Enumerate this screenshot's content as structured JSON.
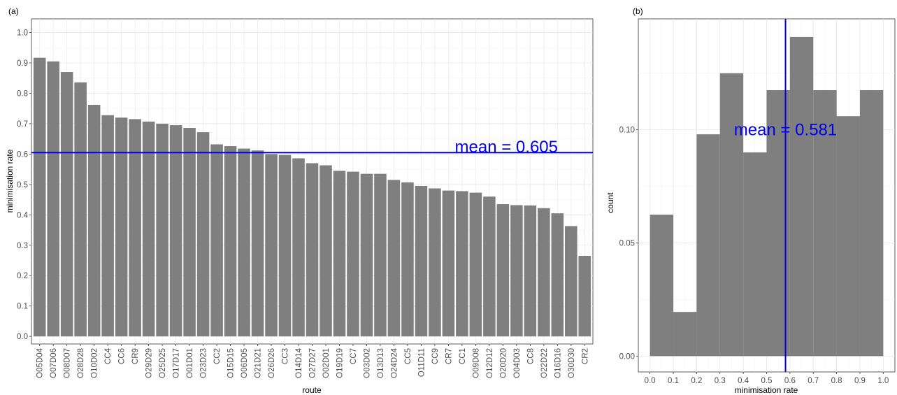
{
  "chart_data": [
    {
      "panel_label": "(a)",
      "type": "bar",
      "xlabel": "route",
      "ylabel": "minimisation rate",
      "ylim": [
        -0.025,
        1.045
      ],
      "yticks": [
        "0.0",
        "0.1",
        "0.2",
        "0.3",
        "0.4",
        "0.5",
        "0.6",
        "0.7",
        "0.8",
        "0.9",
        "1.0"
      ],
      "grid": true,
      "bar_color": "#7f7f7f",
      "line_color": "#0000ee",
      "categories": [
        "O05D04",
        "O07D06",
        "O08D07",
        "O28D28",
        "O10D02",
        "CC4",
        "CC6",
        "CR9",
        "O29D29",
        "O25D25",
        "O17D17",
        "O01D01",
        "O23D23",
        "CC2",
        "O15D15",
        "O06D05",
        "O21D21",
        "O26D26",
        "CC3",
        "O14D14",
        "O27D27",
        "O02D01",
        "O19D19",
        "CC7",
        "O03D02",
        "O13D13",
        "O24D24",
        "CC5",
        "O11D11",
        "CC9",
        "CR7",
        "CC1",
        "O09D08",
        "O12D12",
        "O20D20",
        "O04D03",
        "CC8",
        "O22D22",
        "O16D16",
        "O30D30",
        "CR2"
      ],
      "values": [
        0.917,
        0.905,
        0.87,
        0.836,
        0.762,
        0.728,
        0.72,
        0.715,
        0.707,
        0.7,
        0.695,
        0.686,
        0.672,
        0.632,
        0.626,
        0.618,
        0.612,
        0.6,
        0.597,
        0.586,
        0.57,
        0.563,
        0.545,
        0.542,
        0.535,
        0.535,
        0.515,
        0.507,
        0.495,
        0.487,
        0.48,
        0.478,
        0.473,
        0.46,
        0.435,
        0.432,
        0.431,
        0.422,
        0.405,
        0.363,
        0.265
      ],
      "mean_line": 0.605,
      "mean_label": "mean = 0.605"
    },
    {
      "panel_label": "(b)",
      "type": "bar",
      "xlabel": "minimisation rate",
      "ylabel": "count",
      "xlim": [
        -0.05,
        1.05
      ],
      "ylim": [
        -0.007,
        0.149
      ],
      "xticks": [
        "0.0",
        "0.1",
        "0.2",
        "0.3",
        "0.4",
        "0.5",
        "0.6",
        "0.7",
        "0.8",
        "0.9",
        "1.0"
      ],
      "yticks": [
        "0.00",
        "0.05",
        "0.10"
      ],
      "grid": true,
      "bar_color": "#7f7f7f",
      "line_color": "#0000ee",
      "bins": [
        [
          0.0,
          0.1
        ],
        [
          0.1,
          0.2
        ],
        [
          0.2,
          0.3
        ],
        [
          0.3,
          0.4
        ],
        [
          0.4,
          0.5
        ],
        [
          0.5,
          0.6
        ],
        [
          0.6,
          0.7
        ],
        [
          0.7,
          0.8
        ],
        [
          0.8,
          0.9
        ],
        [
          0.9,
          1.0
        ]
      ],
      "values": [
        0.0625,
        0.0195,
        0.098,
        0.125,
        0.09,
        0.1175,
        0.141,
        0.1175,
        0.106,
        0.1175
      ],
      "mean_line": 0.581,
      "mean_label": "mean = 0.581"
    }
  ]
}
